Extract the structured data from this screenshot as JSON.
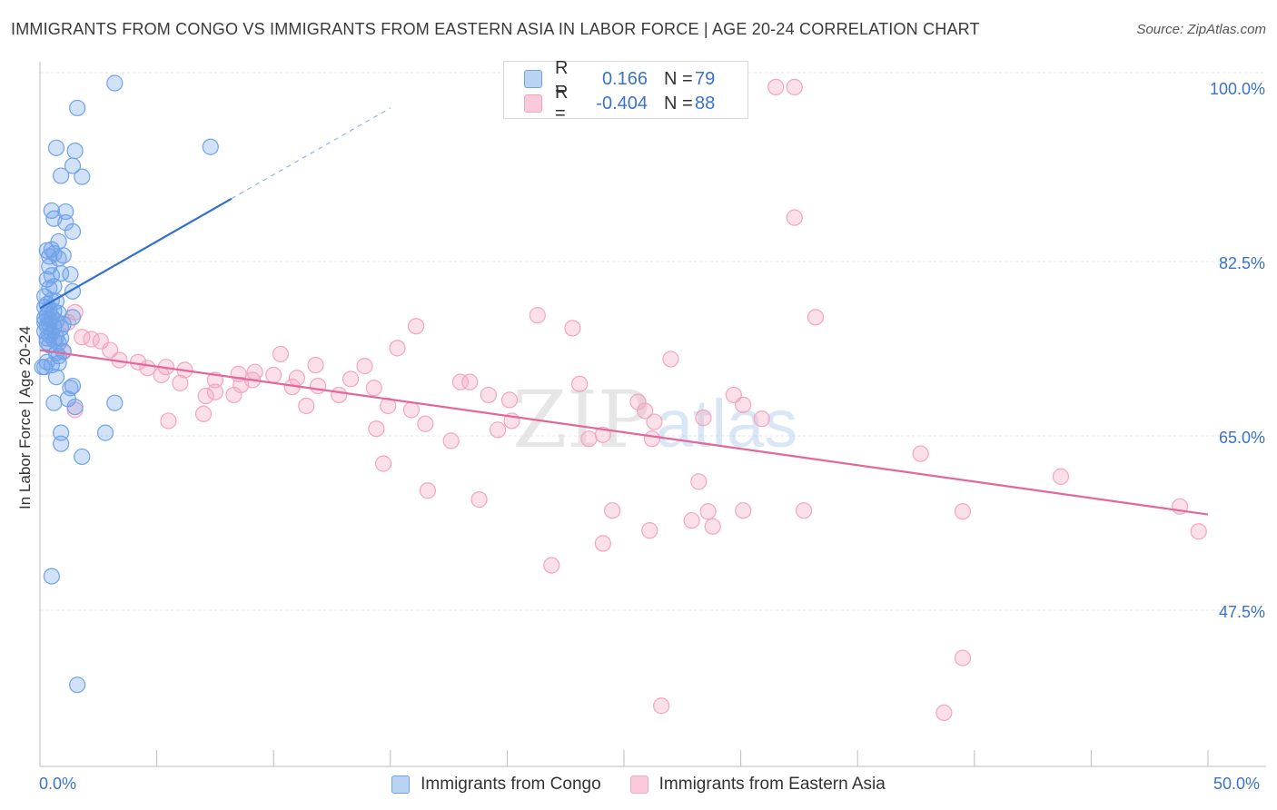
{
  "header": {
    "title": "IMMIGRANTS FROM CONGO VS IMMIGRANTS FROM EASTERN ASIA IN LABOR FORCE | AGE 20-24 CORRELATION CHART",
    "source": "Source: ZipAtlas.com"
  },
  "watermark": {
    "zip": "ZIP",
    "atlas": "atlas"
  },
  "legend_top": [
    {
      "r_label": "R =",
      "r_value": "0.166",
      "n_label": "N =",
      "n_value": "79"
    },
    {
      "r_label": "R =",
      "r_value": "-0.404",
      "n_label": "N =",
      "n_value": "88"
    }
  ],
  "chart_data": {
    "type": "scatter",
    "xlabel": "",
    "ylabel": "In Labor Force | Age 20-24",
    "xlim": [
      0,
      50
    ],
    "ylim": [
      32,
      103
    ],
    "x_tick_labels": [
      "0.0%",
      "50.0%"
    ],
    "y_ticks": [
      47.5,
      65.0,
      82.5,
      100.0
    ],
    "y_tick_labels": [
      "47.5%",
      "65.0%",
      "82.5%",
      "100.0%"
    ],
    "grid": true,
    "legend_position": "bottom",
    "colors": {
      "congo": "#6fa3e8",
      "congo_line": "#2f6fd0",
      "asia": "#f3a5bf",
      "asia_line": "#e2679a",
      "tick_text": "#3a73c9"
    },
    "series": [
      {
        "name": "Immigrants from Congo",
        "color": "#6fa3e8",
        "trend": {
          "x": [
            0.0,
            8.2
          ],
          "y": [
            77.9,
            88.9
          ],
          "dashed_to": [
            15.0,
            98.0
          ]
        },
        "points": [
          [
            3.2,
            100.5
          ],
          [
            1.6,
            98.0
          ],
          [
            7.3,
            94.1
          ],
          [
            0.7,
            94.0
          ],
          [
            1.5,
            93.7
          ],
          [
            1.4,
            92.2
          ],
          [
            0.9,
            91.2
          ],
          [
            1.8,
            91.1
          ],
          [
            0.5,
            87.7
          ],
          [
            1.1,
            87.6
          ],
          [
            0.6,
            86.9
          ],
          [
            1.1,
            86.5
          ],
          [
            1.4,
            85.6
          ],
          [
            0.8,
            84.6
          ],
          [
            0.5,
            83.8
          ],
          [
            0.3,
            83.7
          ],
          [
            0.6,
            83.4
          ],
          [
            1.0,
            83.2
          ],
          [
            0.4,
            83.1
          ],
          [
            0.8,
            82.9
          ],
          [
            0.4,
            82.1
          ],
          [
            0.9,
            81.4
          ],
          [
            1.3,
            81.3
          ],
          [
            0.5,
            81.2
          ],
          [
            0.3,
            80.8
          ],
          [
            0.6,
            80.1
          ],
          [
            0.4,
            79.9
          ],
          [
            1.4,
            79.6
          ],
          [
            0.2,
            79.1
          ],
          [
            0.5,
            78.7
          ],
          [
            0.7,
            78.6
          ],
          [
            0.3,
            78.3
          ],
          [
            0.2,
            78.0
          ],
          [
            0.6,
            77.6
          ],
          [
            0.8,
            77.4
          ],
          [
            0.3,
            77.2
          ],
          [
            0.5,
            77.0
          ],
          [
            1.4,
            77.0
          ],
          [
            0.4,
            76.8
          ],
          [
            0.7,
            76.6
          ],
          [
            0.2,
            76.5
          ],
          [
            0.4,
            76.3
          ],
          [
            1.0,
            76.3
          ],
          [
            0.3,
            76.1
          ],
          [
            0.6,
            76.0
          ],
          [
            0.9,
            75.9
          ],
          [
            0.2,
            75.6
          ],
          [
            0.5,
            75.4
          ],
          [
            0.4,
            75.2
          ],
          [
            0.7,
            75.0
          ],
          [
            0.3,
            74.9
          ],
          [
            0.9,
            74.9
          ],
          [
            0.6,
            74.7
          ],
          [
            0.3,
            74.5
          ],
          [
            0.8,
            74.4
          ],
          [
            0.4,
            74.2
          ],
          [
            1.0,
            73.6
          ],
          [
            0.7,
            73.4
          ],
          [
            0.8,
            73.1
          ],
          [
            0.3,
            72.5
          ],
          [
            0.8,
            72.4
          ],
          [
            0.5,
            72.2
          ],
          [
            0.1,
            72.0
          ],
          [
            0.2,
            72.0
          ],
          [
            0.7,
            71.0
          ],
          [
            1.4,
            70.1
          ],
          [
            1.3,
            69.9
          ],
          [
            1.2,
            68.8
          ],
          [
            0.6,
            68.4
          ],
          [
            3.2,
            68.4
          ],
          [
            1.5,
            68.0
          ],
          [
            0.9,
            65.4
          ],
          [
            2.8,
            65.4
          ],
          [
            0.9,
            64.3
          ],
          [
            1.8,
            63.0
          ],
          [
            0.5,
            51.0
          ],
          [
            1.6,
            40.1
          ],
          [
            0.2,
            76.9
          ],
          [
            0.4,
            77.8
          ]
        ]
      },
      {
        "name": "Immigrants from Eastern Asia",
        "color": "#f3a5bf",
        "trend": {
          "x": [
            0.0,
            50.0
          ],
          "y": [
            73.7,
            57.2
          ]
        },
        "points": [
          [
            31.5,
            100.1
          ],
          [
            32.3,
            100.1
          ],
          [
            32.3,
            87.0
          ],
          [
            33.2,
            77.0
          ],
          [
            21.3,
            77.2
          ],
          [
            16.1,
            76.1
          ],
          [
            22.8,
            75.9
          ],
          [
            1.8,
            75.0
          ],
          [
            2.6,
            74.6
          ],
          [
            15.3,
            73.9
          ],
          [
            3.0,
            73.7
          ],
          [
            1.0,
            73.5
          ],
          [
            10.3,
            73.3
          ],
          [
            27.0,
            72.8
          ],
          [
            3.4,
            72.7
          ],
          [
            4.2,
            72.5
          ],
          [
            11.8,
            72.2
          ],
          [
            13.9,
            72.1
          ],
          [
            5.4,
            72.0
          ],
          [
            4.6,
            71.9
          ],
          [
            6.2,
            71.7
          ],
          [
            9.2,
            71.5
          ],
          [
            10.0,
            71.2
          ],
          [
            8.5,
            71.3
          ],
          [
            5.2,
            71.2
          ],
          [
            6.0,
            70.4
          ],
          [
            7.5,
            70.7
          ],
          [
            8.6,
            70.2
          ],
          [
            11.0,
            70.9
          ],
          [
            13.3,
            70.8
          ],
          [
            9.1,
            70.7
          ],
          [
            11.9,
            70.1
          ],
          [
            10.8,
            70.0
          ],
          [
            14.3,
            69.9
          ],
          [
            18.0,
            70.5
          ],
          [
            18.4,
            70.5
          ],
          [
            23.1,
            70.3
          ],
          [
            7.5,
            69.5
          ],
          [
            8.3,
            69.2
          ],
          [
            7.1,
            69.1
          ],
          [
            12.8,
            69.2
          ],
          [
            19.2,
            69.2
          ],
          [
            29.7,
            69.2
          ],
          [
            25.6,
            68.5
          ],
          [
            20.1,
            68.7
          ],
          [
            30.1,
            68.2
          ],
          [
            11.4,
            68.1
          ],
          [
            14.9,
            68.1
          ],
          [
            15.9,
            67.7
          ],
          [
            1.5,
            67.7
          ],
          [
            7.0,
            67.3
          ],
          [
            25.9,
            67.6
          ],
          [
            28.4,
            66.9
          ],
          [
            5.5,
            66.6
          ],
          [
            16.5,
            66.3
          ],
          [
            30.9,
            66.8
          ],
          [
            20.2,
            66.6
          ],
          [
            26.3,
            66.5
          ],
          [
            14.4,
            65.8
          ],
          [
            19.6,
            65.7
          ],
          [
            23.5,
            64.8
          ],
          [
            26.2,
            64.8
          ],
          [
            24.1,
            65.2
          ],
          [
            17.6,
            64.6
          ],
          [
            37.7,
            63.3
          ],
          [
            14.7,
            62.3
          ],
          [
            28.2,
            60.5
          ],
          [
            43.7,
            61.0
          ],
          [
            16.6,
            59.6
          ],
          [
            18.8,
            58.7
          ],
          [
            24.5,
            57.6
          ],
          [
            30.1,
            57.6
          ],
          [
            28.6,
            57.5
          ],
          [
            32.7,
            57.6
          ],
          [
            39.5,
            57.5
          ],
          [
            48.8,
            58.0
          ],
          [
            27.9,
            56.6
          ],
          [
            28.8,
            56.0
          ],
          [
            49.6,
            55.5
          ],
          [
            26.1,
            55.6
          ],
          [
            24.1,
            54.3
          ],
          [
            21.9,
            52.1
          ],
          [
            39.5,
            42.8
          ],
          [
            26.6,
            38.0
          ],
          [
            38.7,
            37.3
          ],
          [
            1.2,
            76.5
          ],
          [
            1.5,
            77.5
          ],
          [
            2.2,
            74.8
          ]
        ]
      }
    ]
  },
  "legend_bottom": [
    "Immigrants from Congo",
    "Immigrants from Eastern Asia"
  ]
}
